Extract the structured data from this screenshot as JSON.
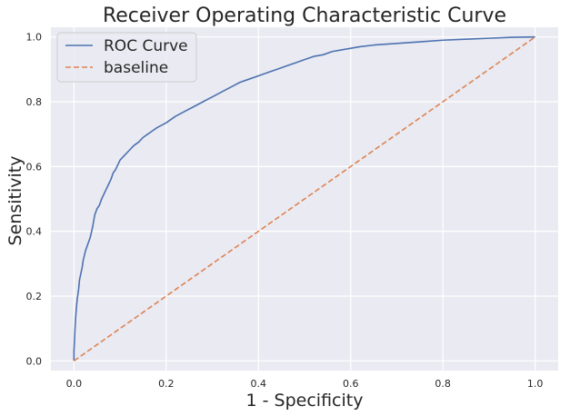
{
  "chart_data": {
    "type": "line",
    "title": "Receiver Operating Characteristic Curve",
    "xlabel": "1 - Specificity",
    "ylabel": "Sensitivity",
    "xlim": [
      -0.05,
      1.05
    ],
    "ylim": [
      -0.03,
      1.03
    ],
    "xticks": [
      "0.0",
      "0.2",
      "0.4",
      "0.6",
      "0.8",
      "1.0"
    ],
    "yticks": [
      "0.0",
      "0.2",
      "0.4",
      "0.6",
      "0.8",
      "1.0"
    ],
    "grid": true,
    "legend_position": "top-left",
    "series": [
      {
        "name": "ROC Curve",
        "color": "#4c72b0",
        "style": "solid",
        "x": [
          0.0,
          0.0,
          0.002,
          0.003,
          0.005,
          0.007,
          0.01,
          0.012,
          0.015,
          0.018,
          0.02,
          0.025,
          0.03,
          0.035,
          0.04,
          0.045,
          0.05,
          0.055,
          0.06,
          0.07,
          0.08,
          0.085,
          0.09,
          0.1,
          0.11,
          0.12,
          0.13,
          0.14,
          0.15,
          0.16,
          0.17,
          0.18,
          0.2,
          0.22,
          0.24,
          0.26,
          0.28,
          0.3,
          0.32,
          0.34,
          0.36,
          0.38,
          0.4,
          0.42,
          0.44,
          0.46,
          0.48,
          0.5,
          0.52,
          0.54,
          0.56,
          0.58,
          0.6,
          0.62,
          0.65,
          0.7,
          0.75,
          0.8,
          0.85,
          0.9,
          0.95,
          1.0
        ],
        "y": [
          0.0,
          0.03,
          0.09,
          0.12,
          0.16,
          0.19,
          0.22,
          0.25,
          0.27,
          0.29,
          0.31,
          0.34,
          0.36,
          0.38,
          0.41,
          0.45,
          0.47,
          0.48,
          0.5,
          0.53,
          0.56,
          0.58,
          0.59,
          0.62,
          0.635,
          0.65,
          0.665,
          0.675,
          0.69,
          0.7,
          0.71,
          0.72,
          0.735,
          0.755,
          0.77,
          0.785,
          0.8,
          0.815,
          0.83,
          0.845,
          0.86,
          0.87,
          0.88,
          0.89,
          0.9,
          0.91,
          0.92,
          0.93,
          0.94,
          0.945,
          0.955,
          0.96,
          0.965,
          0.97,
          0.975,
          0.98,
          0.985,
          0.99,
          0.993,
          0.996,
          0.999,
          1.0
        ]
      },
      {
        "name": "baseline",
        "color": "#dd8452",
        "style": "dashed",
        "x": [
          0.0,
          1.0
        ],
        "y": [
          0.0,
          1.0
        ]
      }
    ]
  }
}
